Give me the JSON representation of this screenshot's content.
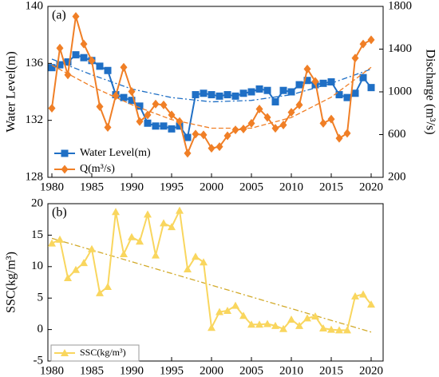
{
  "chart_data": [
    {
      "type": "line",
      "label": "(a)",
      "x": [
        1980,
        1981,
        1982,
        1983,
        1984,
        1985,
        1986,
        1987,
        1988,
        1989,
        1990,
        1991,
        1992,
        1993,
        1994,
        1995,
        1996,
        1997,
        1998,
        1999,
        2000,
        2001,
        2002,
        2003,
        2004,
        2005,
        2006,
        2007,
        2008,
        2009,
        2010,
        2011,
        2012,
        2013,
        2014,
        2015,
        2016,
        2017,
        2018,
        2019,
        2020
      ],
      "xlim": [
        1979.5,
        2021.5
      ],
      "xticks": [
        1980,
        1985,
        1990,
        1995,
        2000,
        2005,
        2010,
        2015,
        2020
      ],
      "ylabel": "Water Level(m)",
      "ylim": [
        128,
        140
      ],
      "yticks": [
        128,
        132,
        136,
        140
      ],
      "y2label": "Discharge (m³/s)",
      "y2lim": [
        200,
        1800
      ],
      "y2ticks": [
        200,
        600,
        1000,
        1400,
        1800
      ],
      "legend": "lower left",
      "series": [
        {
          "name": "Water Level(m)",
          "color": "#1f6fc5",
          "marker": "square",
          "values": [
            135.7,
            135.9,
            136.1,
            136.6,
            136.4,
            136.2,
            135.8,
            135.5,
            133.8,
            133.6,
            133.4,
            133.0,
            131.8,
            131.6,
            131.6,
            131.4,
            131.6,
            130.8,
            133.8,
            133.9,
            133.8,
            133.7,
            133.8,
            133.7,
            133.9,
            134.0,
            134.2,
            134.1,
            133.3,
            134.1,
            134.0,
            134.5,
            134.8,
            134.5,
            134.6,
            134.7,
            133.8,
            133.6,
            133.9,
            135.0,
            134.3
          ],
          "trend": {
            "style": "dashdot",
            "x": [
              1980,
              1985,
              1990,
              1995,
              2000,
              2005,
              2010,
              2015,
              2020
            ],
            "values": [
              136.3,
              135.2,
              134.2,
              133.6,
              133.3,
              133.4,
              133.8,
              134.6,
              135.6
            ]
          }
        },
        {
          "name": "Q(m³/s)",
          "color": "#f07f26",
          "marker": "diamond",
          "axis": "y2",
          "values": [
            847,
            1409,
            1159,
            1706,
            1448,
            1292,
            862,
            667,
            964,
            1230,
            1003,
            722,
            784,
            886,
            878,
            784,
            722,
            425,
            605,
            597,
            472,
            487,
            589,
            644,
            652,
            706,
            839,
            761,
            659,
            690,
            808,
            878,
            1214,
            1097,
            706,
            745,
            565,
            612,
            1316,
            1448,
            1487
          ],
          "trend": {
            "style": "dashed",
            "x": [
              1980,
              1985,
              1990,
              1995,
              2000,
              2005,
              2010,
              2015,
              2020
            ],
            "values": [
              1250,
              1050,
              880,
              740,
              660,
              660,
              760,
              950,
              1230
            ]
          }
        }
      ]
    },
    {
      "type": "line",
      "label": "(b)",
      "x": [
        1980,
        1981,
        1982,
        1983,
        1984,
        1985,
        1986,
        1987,
        1988,
        1989,
        1990,
        1991,
        1992,
        1993,
        1994,
        1995,
        1996,
        1997,
        1998,
        1999,
        2000,
        2001,
        2002,
        2003,
        2004,
        2005,
        2006,
        2007,
        2008,
        2009,
        2010,
        2011,
        2012,
        2013,
        2014,
        2015,
        2016,
        2017,
        2018,
        2019,
        2020
      ],
      "xlim": [
        1979.5,
        2021.5
      ],
      "xticks": [
        1980,
        1985,
        1990,
        1995,
        2000,
        2005,
        2010,
        2015,
        2020
      ],
      "ylabel": "SSC(kg/m³)",
      "ylim": [
        -5,
        20
      ],
      "yticks": [
        -5,
        0,
        5,
        10,
        15,
        20
      ],
      "legend": "lower left",
      "series": [
        {
          "name": "SSC(kg/m³)",
          "color": "#f9d65e",
          "marker": "triangle",
          "values": [
            13.7,
            14.3,
            8.2,
            9.5,
            10.6,
            12.8,
            5.8,
            6.8,
            18.7,
            12.0,
            14.7,
            14.0,
            18.3,
            11.8,
            16.9,
            16.3,
            18.9,
            9.6,
            11.6,
            10.7,
            0.3,
            2.8,
            3.0,
            3.8,
            2.2,
            0.8,
            0.8,
            0.9,
            0.6,
            0.1,
            1.6,
            0.6,
            1.8,
            2.1,
            0.2,
            0.0,
            -0.1,
            -0.1,
            5.3,
            5.6,
            4.0
          ],
          "trend": {
            "style": "dashdot",
            "color": "#d2aa2a",
            "x": [
              1980,
              2020
            ],
            "values": [
              14.5,
              -0.4
            ]
          }
        }
      ]
    }
  ]
}
